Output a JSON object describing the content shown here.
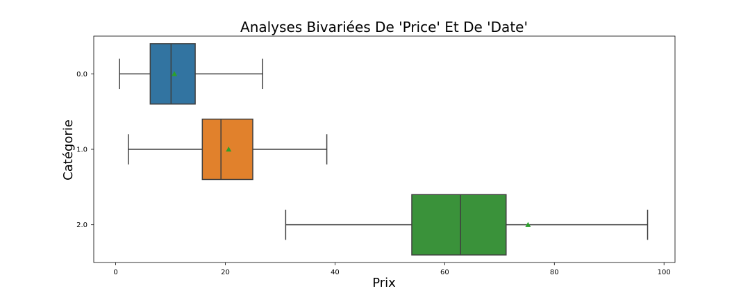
{
  "chart_data": {
    "type": "boxplot",
    "orientation": "horizontal",
    "title": "Analyses Bivariées De 'Price' Et De 'Date'",
    "xlabel": "Prix",
    "ylabel": "Catégorie",
    "xlim": [
      -4,
      102
    ],
    "xticks": [
      0,
      20,
      40,
      60,
      80,
      100
    ],
    "xtick_labels": [
      "0",
      "20",
      "40",
      "60",
      "80",
      "100"
    ],
    "grid": false,
    "legend": "none",
    "categories": [
      "0.0",
      "1.0",
      "2.0"
    ],
    "boxes": [
      {
        "category": "0.0",
        "whisker_low": 0.7,
        "q1": 6.3,
        "median": 10.1,
        "q3": 14.5,
        "whisker_high": 26.8,
        "mean": 10.7,
        "color": "#3274a1"
      },
      {
        "category": "1.0",
        "whisker_low": 2.3,
        "q1": 15.8,
        "median": 19.2,
        "q3": 25.0,
        "whisker_high": 38.5,
        "mean": 20.6,
        "color": "#e1812c"
      },
      {
        "category": "2.0",
        "whisker_low": 31.0,
        "q1": 54.0,
        "median": 62.9,
        "q3": 71.2,
        "whisker_high": 97.0,
        "mean": 75.2,
        "color": "#3a923a"
      }
    ],
    "mean_marker_color": "#2ca02c",
    "line_color": "#3f3f3f"
  }
}
